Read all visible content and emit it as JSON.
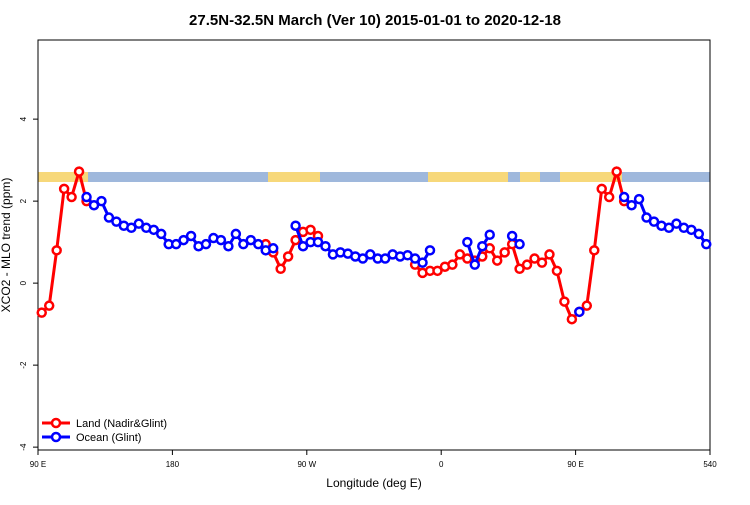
{
  "chart_data": {
    "type": "line",
    "title": "27.5N-32.5N March (Ver 10)   2015-01-01 to 2020-12-18",
    "x_label": "Longitude (deg E)",
    "y_label": "XCO2 - MLO trend (ppm)",
    "xlim": [
      90,
      540
    ],
    "xticks": [
      {
        "value": 90,
        "label": "90 E"
      },
      180,
      {
        "value": 270,
        "label": "90 W"
      },
      {
        "value": 360,
        "label": "0"
      },
      {
        "value": 450,
        "label": "90 E"
      },
      540
    ],
    "ylim": [
      -4.07,
      5.93
    ],
    "yticks": [
      -4,
      -2,
      0,
      2,
      4
    ],
    "legend": "bottom-left",
    "series": [
      {
        "name": "Land (Nadir&Glint)",
        "color": "#ff0000",
        "x": [
          92.5,
          97.5,
          102.5,
          107.5,
          112.5,
          117.5,
          122.5,
          127.5,
          242.5,
          247.5,
          252.5,
          257.5,
          262.5,
          267.5,
          272.5,
          277.5,
          282.5,
          342.5,
          347.5,
          352.5,
          357.5,
          362.5,
          367.5,
          372.5,
          377.5,
          382.5,
          387.5,
          392.5,
          397.5,
          402.5,
          407.5,
          412.5,
          417.5,
          422.5,
          427.5,
          432.5,
          437.5,
          442.5,
          447.5,
          452.5,
          457.5,
          462.5,
          467.5,
          472.5,
          477.5,
          482.5
        ],
        "values": [
          -0.72,
          -0.55,
          0.8,
          2.3,
          2.1,
          2.72,
          2.0,
          null,
          0.95,
          0.75,
          0.35,
          0.65,
          1.05,
          1.25,
          1.3,
          1.15,
          null,
          0.45,
          0.25,
          0.3,
          0.3,
          0.4,
          0.45,
          0.7,
          0.6,
          0.55,
          0.65,
          0.85,
          0.55,
          0.75,
          0.95,
          0.35,
          0.45,
          0.6,
          0.5,
          0.7,
          0.3,
          -0.45,
          -0.88,
          -0.7,
          -0.55,
          0.8,
          2.3,
          2.1,
          2.72,
          2.0
        ]
      },
      {
        "name": "Ocean (Glint)",
        "color": "#0000ff",
        "x": [
          122.5,
          127.5,
          132.5,
          137.5,
          142.5,
          147.5,
          152.5,
          157.5,
          162.5,
          167.5,
          172.5,
          177.5,
          182.5,
          187.5,
          192.5,
          197.5,
          202.5,
          207.5,
          212.5,
          217.5,
          222.5,
          227.5,
          232.5,
          237.5,
          242.5,
          247.5,
          252.5,
          262.5,
          267.5,
          272.5,
          277.5,
          282.5,
          287.5,
          292.5,
          297.5,
          302.5,
          307.5,
          312.5,
          317.5,
          322.5,
          327.5,
          332.5,
          337.5,
          342.5,
          347.5,
          352.5,
          357.5,
          377.5,
          382.5,
          387.5,
          392.5,
          397.5,
          407.5,
          412.5,
          417.5,
          452.5,
          457.5,
          482.5,
          487.5,
          492.5,
          497.5,
          502.5,
          507.5,
          512.5,
          517.5,
          522.5,
          527.5,
          532.5,
          537.5
        ],
        "values": [
          2.1,
          1.9,
          2.0,
          1.6,
          1.5,
          1.4,
          1.35,
          1.45,
          1.35,
          1.3,
          1.2,
          0.95,
          0.95,
          1.05,
          1.15,
          0.9,
          0.95,
          1.1,
          1.05,
          0.9,
          1.2,
          0.95,
          1.05,
          0.95,
          0.8,
          0.85,
          null,
          1.4,
          0.9,
          1.0,
          1.0,
          0.9,
          0.7,
          0.75,
          0.72,
          0.65,
          0.6,
          0.7,
          0.6,
          0.6,
          0.7,
          0.65,
          0.68,
          0.6,
          0.5,
          0.8,
          null,
          1.0,
          0.45,
          0.9,
          1.18,
          null,
          1.15,
          0.95,
          null,
          -0.7,
          null,
          2.1,
          1.9,
          2.05,
          1.6,
          1.5,
          1.4,
          1.35,
          1.45,
          1.35,
          1.3,
          1.2,
          0.95
        ]
      }
    ]
  }
}
